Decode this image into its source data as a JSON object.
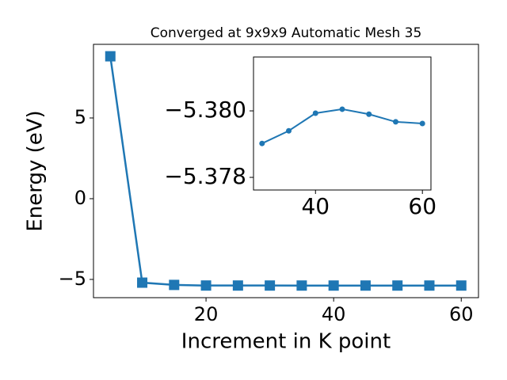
{
  "chart_data": [
    {
      "type": "line",
      "title": "Converged at 9x9x9 Automatic Mesh 35",
      "x_label": "Increment in K point",
      "y_label": "Energy (eV)",
      "x": [
        5,
        10,
        15,
        20,
        25,
        30,
        35,
        40,
        45,
        50,
        55,
        60
      ],
      "series": [
        {
          "color": "#1f77b4",
          "marker": "square",
          "values": [
            8.82,
            -5.2,
            -5.34,
            -5.378,
            -5.379,
            -5.37902,
            -5.3794,
            -5.37993,
            -5.38005,
            -5.3799,
            -5.37967,
            -5.37962
          ]
        }
      ],
      "xlim": [
        2.36,
        62.7
      ],
      "xticks": [
        20,
        40,
        60
      ],
      "ylim": [
        -6.13,
        9.56
      ],
      "yticks": [
        {
          "value": -5,
          "label": "−5"
        },
        0,
        5
      ]
    },
    {
      "type": "line",
      "x": [
        30,
        35,
        40,
        45,
        50,
        55,
        60
      ],
      "series": [
        {
          "color": "#1f77b4",
          "marker": "circle",
          "values": [
            -5.37902,
            -5.3794,
            -5.37993,
            -5.38005,
            -5.3799,
            -5.37967,
            -5.37962
          ]
        }
      ],
      "xlim": [
        28.4,
        61.6
      ],
      "xticks": [
        40,
        60
      ],
      "ylim": [
        -5.37762,
        -5.38162
      ],
      "yticks": [
        {
          "value": -5.38,
          "label": "−5.380"
        },
        {
          "value": -5.378,
          "label": "−5.378"
        }
      ]
    }
  ]
}
